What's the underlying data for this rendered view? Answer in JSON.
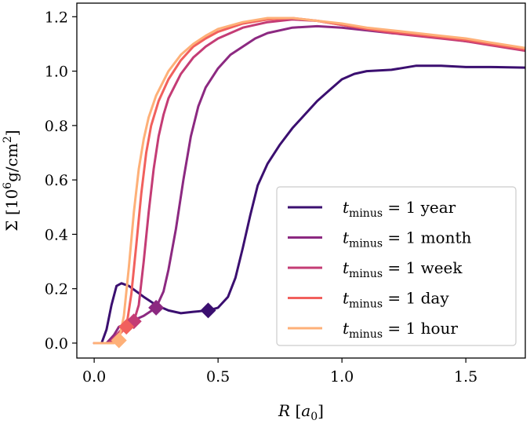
{
  "chart_data": {
    "type": "line",
    "title": "",
    "xlabel": {
      "symbol": "R",
      "unit_open": "[",
      "unit_symbol": "a",
      "unit_sub": "0",
      "unit_close": "]"
    },
    "ylabel": {
      "symbol": "Σ",
      "text_open": "[10",
      "exp": "6",
      "text_mid": "g/cm",
      "exp2": "2",
      "text_close": "]"
    },
    "xlim": [
      -0.07,
      1.74
    ],
    "ylim": [
      -0.055,
      1.25
    ],
    "xticks": [
      0.0,
      0.5,
      1.0,
      1.5
    ],
    "xtick_labels": [
      "0.0",
      "0.5",
      "1.0",
      "1.5"
    ],
    "yticks": [
      0.0,
      0.2,
      0.4,
      0.6,
      0.8,
      1.0,
      1.2
    ],
    "ytick_labels": [
      "0.0",
      "0.2",
      "0.4",
      "0.6",
      "0.8",
      "1.0",
      "1.2"
    ],
    "legend_position": "lower right",
    "series": [
      {
        "name": "t_minus = 1 year",
        "legend": {
          "t": "t",
          "sub": "minus",
          "rest": " = 1 year"
        },
        "color": "#3b0f70",
        "marker": [
          0.46,
          0.12
        ],
        "points": [
          [
            0.0,
            0.0
          ],
          [
            0.03,
            0.0
          ],
          [
            0.05,
            0.05
          ],
          [
            0.07,
            0.14
          ],
          [
            0.09,
            0.21
          ],
          [
            0.11,
            0.22
          ],
          [
            0.14,
            0.21
          ],
          [
            0.17,
            0.19
          ],
          [
            0.2,
            0.17
          ],
          [
            0.25,
            0.14
          ],
          [
            0.3,
            0.12
          ],
          [
            0.35,
            0.11
          ],
          [
            0.4,
            0.115
          ],
          [
            0.46,
            0.12
          ],
          [
            0.5,
            0.13
          ],
          [
            0.54,
            0.17
          ],
          [
            0.57,
            0.24
          ],
          [
            0.6,
            0.35
          ],
          [
            0.63,
            0.47
          ],
          [
            0.66,
            0.58
          ],
          [
            0.7,
            0.66
          ],
          [
            0.75,
            0.73
          ],
          [
            0.8,
            0.79
          ],
          [
            0.85,
            0.84
          ],
          [
            0.9,
            0.89
          ],
          [
            0.95,
            0.93
          ],
          [
            1.0,
            0.97
          ],
          [
            1.05,
            0.99
          ],
          [
            1.1,
            1.0
          ],
          [
            1.2,
            1.005
          ],
          [
            1.3,
            1.02
          ],
          [
            1.4,
            1.02
          ],
          [
            1.5,
            1.015
          ],
          [
            1.6,
            1.015
          ],
          [
            1.74,
            1.013
          ]
        ]
      },
      {
        "name": "t_minus = 1 month",
        "legend": {
          "t": "t",
          "sub": "minus",
          "rest": " = 1 month"
        },
        "color": "#8c2981",
        "marker": [
          0.25,
          0.13
        ],
        "points": [
          [
            0.0,
            0.0
          ],
          [
            0.05,
            0.0
          ],
          [
            0.08,
            0.03
          ],
          [
            0.1,
            0.06
          ],
          [
            0.15,
            0.08
          ],
          [
            0.2,
            0.1
          ],
          [
            0.25,
            0.13
          ],
          [
            0.28,
            0.19
          ],
          [
            0.3,
            0.27
          ],
          [
            0.33,
            0.42
          ],
          [
            0.36,
            0.6
          ],
          [
            0.39,
            0.76
          ],
          [
            0.42,
            0.87
          ],
          [
            0.45,
            0.94
          ],
          [
            0.5,
            1.01
          ],
          [
            0.55,
            1.06
          ],
          [
            0.6,
            1.09
          ],
          [
            0.65,
            1.12
          ],
          [
            0.7,
            1.14
          ],
          [
            0.8,
            1.16
          ],
          [
            0.9,
            1.165
          ],
          [
            1.0,
            1.16
          ],
          [
            1.1,
            1.15
          ],
          [
            1.2,
            1.14
          ],
          [
            1.3,
            1.135
          ],
          [
            1.4,
            1.125
          ],
          [
            1.5,
            1.11
          ],
          [
            1.6,
            1.1
          ],
          [
            1.74,
            1.08
          ]
        ]
      },
      {
        "name": "t_minus = 1 week",
        "legend": {
          "t": "t",
          "sub": "minus",
          "rest": " = 1 week"
        },
        "color": "#c43c75",
        "marker": [
          0.16,
          0.08
        ],
        "points": [
          [
            0.0,
            0.0
          ],
          [
            0.06,
            0.0
          ],
          [
            0.09,
            0.03
          ],
          [
            0.12,
            0.06
          ],
          [
            0.16,
            0.08
          ],
          [
            0.18,
            0.14
          ],
          [
            0.2,
            0.3
          ],
          [
            0.22,
            0.48
          ],
          [
            0.24,
            0.64
          ],
          [
            0.26,
            0.76
          ],
          [
            0.28,
            0.84
          ],
          [
            0.3,
            0.9
          ],
          [
            0.35,
            0.99
          ],
          [
            0.4,
            1.05
          ],
          [
            0.45,
            1.09
          ],
          [
            0.5,
            1.12
          ],
          [
            0.55,
            1.14
          ],
          [
            0.6,
            1.16
          ],
          [
            0.7,
            1.18
          ],
          [
            0.8,
            1.19
          ],
          [
            0.9,
            1.185
          ],
          [
            1.0,
            1.17
          ],
          [
            1.1,
            1.155
          ],
          [
            1.2,
            1.14
          ],
          [
            1.3,
            1.13
          ],
          [
            1.4,
            1.12
          ],
          [
            1.5,
            1.11
          ],
          [
            1.6,
            1.095
          ],
          [
            1.74,
            1.075
          ]
        ]
      },
      {
        "name": "t_minus = 1 day",
        "legend": {
          "t": "t",
          "sub": "minus",
          "rest": " = 1 day"
        },
        "color": "#f1605d",
        "marker": [
          0.13,
          0.06
        ],
        "points": [
          [
            0.0,
            0.0
          ],
          [
            0.07,
            0.0
          ],
          [
            0.1,
            0.03
          ],
          [
            0.13,
            0.06
          ],
          [
            0.15,
            0.18
          ],
          [
            0.17,
            0.36
          ],
          [
            0.19,
            0.55
          ],
          [
            0.21,
            0.7
          ],
          [
            0.23,
            0.8
          ],
          [
            0.26,
            0.89
          ],
          [
            0.3,
            0.97
          ],
          [
            0.35,
            1.04
          ],
          [
            0.4,
            1.09
          ],
          [
            0.45,
            1.12
          ],
          [
            0.5,
            1.145
          ],
          [
            0.6,
            1.175
          ],
          [
            0.7,
            1.19
          ],
          [
            0.8,
            1.195
          ],
          [
            0.9,
            1.185
          ],
          [
            1.0,
            1.17
          ],
          [
            1.1,
            1.155
          ],
          [
            1.2,
            1.145
          ],
          [
            1.3,
            1.135
          ],
          [
            1.4,
            1.125
          ],
          [
            1.5,
            1.115
          ],
          [
            1.6,
            1.1
          ],
          [
            1.74,
            1.08
          ]
        ]
      },
      {
        "name": "t_minus = 1 hour",
        "legend": {
          "t": "t",
          "sub": "minus",
          "rest": " = 1 hour"
        },
        "color": "#feb078",
        "marker": [
          0.1,
          0.01
        ],
        "points": [
          [
            0.0,
            0.0
          ],
          [
            0.08,
            0.0
          ],
          [
            0.1,
            0.01
          ],
          [
            0.12,
            0.1
          ],
          [
            0.14,
            0.28
          ],
          [
            0.16,
            0.48
          ],
          [
            0.18,
            0.64
          ],
          [
            0.2,
            0.75
          ],
          [
            0.22,
            0.83
          ],
          [
            0.25,
            0.91
          ],
          [
            0.3,
            1.0
          ],
          [
            0.35,
            1.06
          ],
          [
            0.4,
            1.1
          ],
          [
            0.45,
            1.13
          ],
          [
            0.5,
            1.155
          ],
          [
            0.6,
            1.18
          ],
          [
            0.7,
            1.195
          ],
          [
            0.8,
            1.195
          ],
          [
            0.9,
            1.185
          ],
          [
            1.0,
            1.175
          ],
          [
            1.1,
            1.16
          ],
          [
            1.2,
            1.15
          ],
          [
            1.3,
            1.14
          ],
          [
            1.4,
            1.13
          ],
          [
            1.5,
            1.12
          ],
          [
            1.6,
            1.105
          ],
          [
            1.74,
            1.085
          ]
        ]
      }
    ]
  }
}
